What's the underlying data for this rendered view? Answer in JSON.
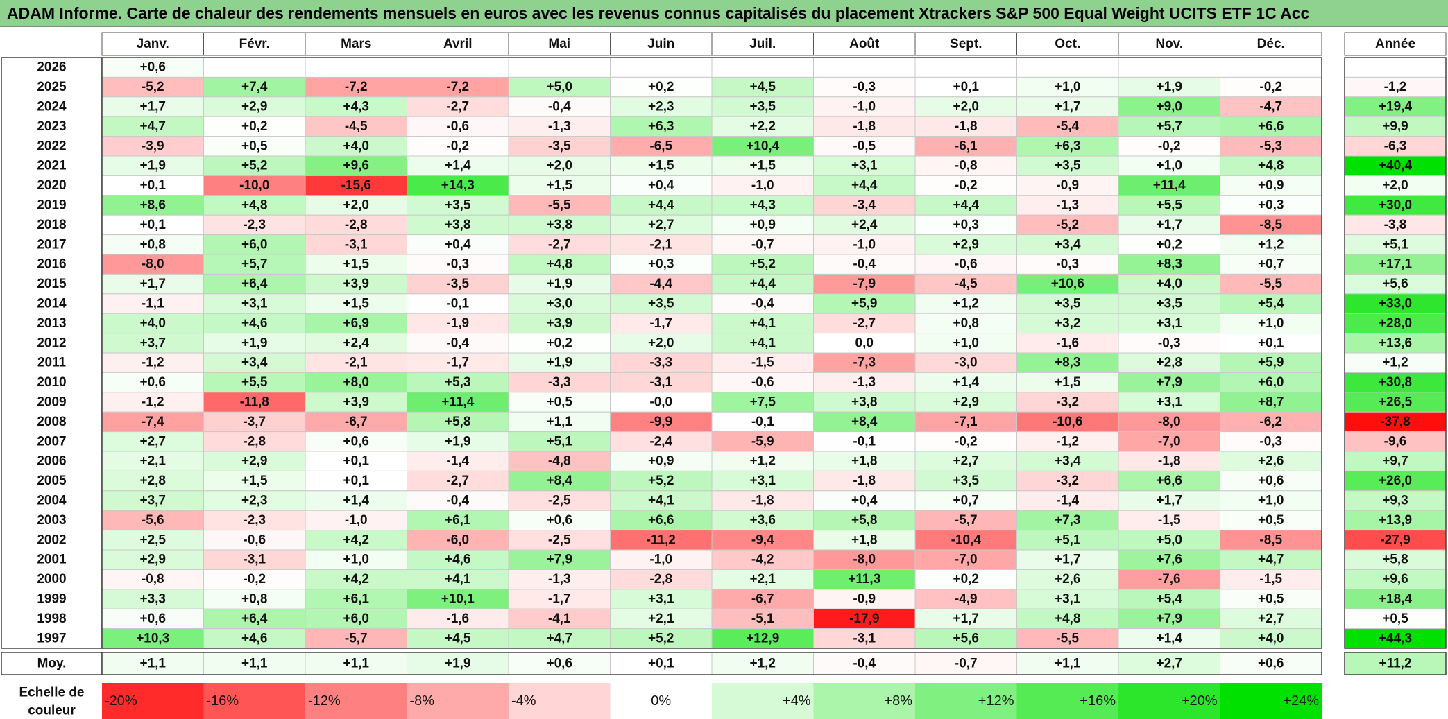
{
  "title": "ADAM Informe. Carte de chaleur des rendements mensuels en euros avec les revenus connus capitalisés du placement Xtrackers S&P 500 Equal Weight UCITS ETF 1C Acc",
  "chart_data": {
    "type": "heatmap",
    "title": "ADAM Informe. Carte de chaleur des rendements mensuels en euros avec les revenus connus capitalisés du placement Xtrackers S&P 500 Equal Weight UCITS ETF 1C Acc",
    "columns": [
      "Janv.",
      "Févr.",
      "Mars",
      "Avril",
      "Mai",
      "Juin",
      "Juil.",
      "Août",
      "Sept.",
      "Oct.",
      "Nov.",
      "Déc."
    ],
    "year_column_label": "Année",
    "rows": [
      {
        "year": "2026",
        "values": [
          0.6,
          null,
          null,
          null,
          null,
          null,
          null,
          null,
          null,
          null,
          null,
          null
        ],
        "annual": null
      },
      {
        "year": "2025",
        "values": [
          -5.2,
          7.4,
          -7.2,
          -7.2,
          5.0,
          0.2,
          4.5,
          -0.3,
          0.1,
          1.0,
          1.9,
          -0.2
        ],
        "annual": -1.2
      },
      {
        "year": "2024",
        "values": [
          1.7,
          2.9,
          4.3,
          -2.7,
          -0.4,
          2.3,
          3.5,
          -1.0,
          2.0,
          1.7,
          9.0,
          -4.7
        ],
        "annual": 19.4
      },
      {
        "year": "2023",
        "values": [
          4.7,
          0.2,
          -4.5,
          -0.6,
          -1.3,
          6.3,
          2.2,
          -1.8,
          -1.8,
          -5.4,
          5.7,
          6.6
        ],
        "annual": 9.9
      },
      {
        "year": "2022",
        "values": [
          -3.9,
          0.5,
          4.0,
          -0.2,
          -3.5,
          -6.5,
          10.4,
          -0.5,
          -6.1,
          6.3,
          -0.2,
          -5.3
        ],
        "annual": -6.3
      },
      {
        "year": "2021",
        "values": [
          1.9,
          5.2,
          9.6,
          1.4,
          2.0,
          1.5,
          1.5,
          3.1,
          -0.8,
          3.5,
          1.0,
          4.8
        ],
        "annual": 40.4
      },
      {
        "year": "2020",
        "values": [
          0.1,
          -10.0,
          -15.6,
          14.3,
          1.5,
          0.4,
          -1.0,
          4.4,
          -0.2,
          -0.9,
          11.4,
          0.9
        ],
        "annual": 2.0
      },
      {
        "year": "2019",
        "values": [
          8.6,
          4.8,
          2.0,
          3.5,
          -5.5,
          4.4,
          4.3,
          -3.4,
          4.4,
          -1.3,
          5.5,
          0.3
        ],
        "annual": 30.0
      },
      {
        "year": "2018",
        "values": [
          0.1,
          -2.3,
          -2.8,
          3.8,
          3.8,
          2.7,
          0.9,
          2.4,
          0.3,
          -5.2,
          1.7,
          -8.5
        ],
        "annual": -3.8
      },
      {
        "year": "2017",
        "values": [
          0.8,
          6.0,
          -3.1,
          0.4,
          -2.7,
          -2.1,
          -0.7,
          -1.0,
          2.9,
          3.4,
          0.2,
          1.2
        ],
        "annual": 5.1
      },
      {
        "year": "2016",
        "values": [
          -8.0,
          5.7,
          1.5,
          -0.3,
          4.8,
          0.3,
          5.2,
          -0.4,
          -0.6,
          -0.3,
          8.3,
          0.7
        ],
        "annual": 17.1
      },
      {
        "year": "2015",
        "values": [
          1.7,
          6.4,
          3.9,
          -3.5,
          1.9,
          -4.4,
          4.4,
          -7.9,
          -4.5,
          10.6,
          4.0,
          -5.5
        ],
        "annual": 5.6
      },
      {
        "year": "2014",
        "values": [
          -1.1,
          3.1,
          1.5,
          -0.1,
          3.0,
          3.5,
          -0.4,
          5.9,
          1.2,
          3.5,
          3.5,
          5.4
        ],
        "annual": 33.0
      },
      {
        "year": "2013",
        "values": [
          4.0,
          4.6,
          6.9,
          -1.9,
          3.9,
          -1.7,
          4.1,
          -2.7,
          0.8,
          3.2,
          3.1,
          1.0
        ],
        "annual": 28.0
      },
      {
        "year": "2012",
        "values": [
          3.7,
          1.9,
          2.4,
          -0.4,
          0.2,
          2.0,
          4.1,
          "0,0",
          1.0,
          -1.6,
          -0.3,
          0.1
        ],
        "annual": 13.6
      },
      {
        "year": "2011",
        "values": [
          -1.2,
          3.4,
          -2.1,
          -1.7,
          1.9,
          -3.3,
          -1.5,
          -7.3,
          -3.0,
          8.3,
          2.8,
          5.9
        ],
        "annual": 1.2
      },
      {
        "year": "2010",
        "values": [
          0.6,
          5.5,
          8.0,
          5.3,
          -3.3,
          -3.1,
          -0.6,
          -1.3,
          1.4,
          1.5,
          7.9,
          6.0
        ],
        "annual": 30.8
      },
      {
        "year": "2009",
        "values": [
          -1.2,
          -11.8,
          3.9,
          11.4,
          0.5,
          "-0,0",
          7.5,
          3.8,
          2.9,
          -3.2,
          3.1,
          8.7
        ],
        "annual": 26.5
      },
      {
        "year": "2008",
        "values": [
          -7.4,
          -3.7,
          -6.7,
          5.8,
          1.1,
          -9.9,
          -0.1,
          8.4,
          -7.1,
          -10.6,
          -8.0,
          -6.2
        ],
        "annual": -37.8
      },
      {
        "year": "2007",
        "values": [
          2.7,
          -2.8,
          0.6,
          1.9,
          5.1,
          -2.4,
          -5.9,
          -0.1,
          -0.2,
          -1.2,
          -7.0,
          -0.3
        ],
        "annual": -9.6
      },
      {
        "year": "2006",
        "values": [
          2.1,
          2.9,
          0.1,
          -1.4,
          -4.8,
          0.9,
          1.2,
          1.8,
          2.7,
          3.4,
          -1.8,
          2.6
        ],
        "annual": 9.7
      },
      {
        "year": "2005",
        "values": [
          2.8,
          1.5,
          0.1,
          -2.7,
          8.4,
          5.2,
          3.1,
          -1.8,
          3.5,
          -3.2,
          6.6,
          0.6
        ],
        "annual": 26.0
      },
      {
        "year": "2004",
        "values": [
          3.7,
          2.3,
          1.4,
          -0.4,
          -2.5,
          4.1,
          -1.8,
          0.4,
          0.7,
          -1.4,
          1.7,
          1.0
        ],
        "annual": 9.3
      },
      {
        "year": "2003",
        "values": [
          -5.6,
          -2.3,
          -1.0,
          6.1,
          0.6,
          6.6,
          3.6,
          5.8,
          -5.7,
          7.3,
          -1.5,
          0.5
        ],
        "annual": 13.9
      },
      {
        "year": "2002",
        "values": [
          2.5,
          -0.6,
          4.2,
          -6.0,
          -2.5,
          -11.2,
          -9.4,
          1.8,
          -10.4,
          5.1,
          5.0,
          -8.5
        ],
        "annual": -27.9
      },
      {
        "year": "2001",
        "values": [
          2.9,
          -3.1,
          1.0,
          4.6,
          7.9,
          -1.0,
          -4.2,
          -8.0,
          -7.0,
          1.7,
          7.6,
          4.7
        ],
        "annual": 5.8
      },
      {
        "year": "2000",
        "values": [
          -0.8,
          -0.2,
          4.2,
          4.1,
          -1.3,
          -2.8,
          2.1,
          11.3,
          0.2,
          2.6,
          -7.6,
          -1.5
        ],
        "annual": 9.6
      },
      {
        "year": "1999",
        "values": [
          3.3,
          0.8,
          6.1,
          10.1,
          -1.7,
          3.1,
          -6.7,
          -0.9,
          -4.9,
          3.1,
          5.4,
          0.5
        ],
        "annual": 18.4
      },
      {
        "year": "1998",
        "values": [
          0.6,
          6.4,
          6.0,
          -1.6,
          -4.1,
          2.1,
          -5.1,
          -17.9,
          1.7,
          4.8,
          7.9,
          2.7
        ],
        "annual": 0.5
      },
      {
        "year": "1997",
        "values": [
          10.3,
          4.6,
          -5.7,
          4.5,
          4.7,
          5.2,
          12.9,
          -3.1,
          5.6,
          -5.5,
          1.4,
          4.0
        ],
        "annual": 44.3
      }
    ],
    "average": {
      "label": "Moy.",
      "values": [
        1.1,
        1.1,
        1.1,
        1.9,
        0.6,
        0.1,
        1.2,
        -0.4,
        -0.7,
        1.1,
        2.7,
        0.6
      ],
      "annual": 11.2
    },
    "color_scale": {
      "label": "Echelle de couleur",
      "stops": [
        "-20%",
        "-16%",
        "-12%",
        "-8%",
        "-4%",
        "0%",
        "+4%",
        "+8%",
        "+12%",
        "+16%",
        "+20%",
        "+24%"
      ],
      "stop_values": [
        -20,
        -16,
        -12,
        -8,
        -4,
        0,
        4,
        8,
        12,
        16,
        20,
        24
      ],
      "negative_color": "#ff0000",
      "positive_color": "#00e000",
      "neutral_color": "#ffffff"
    },
    "header_color": "#8fd18f"
  }
}
